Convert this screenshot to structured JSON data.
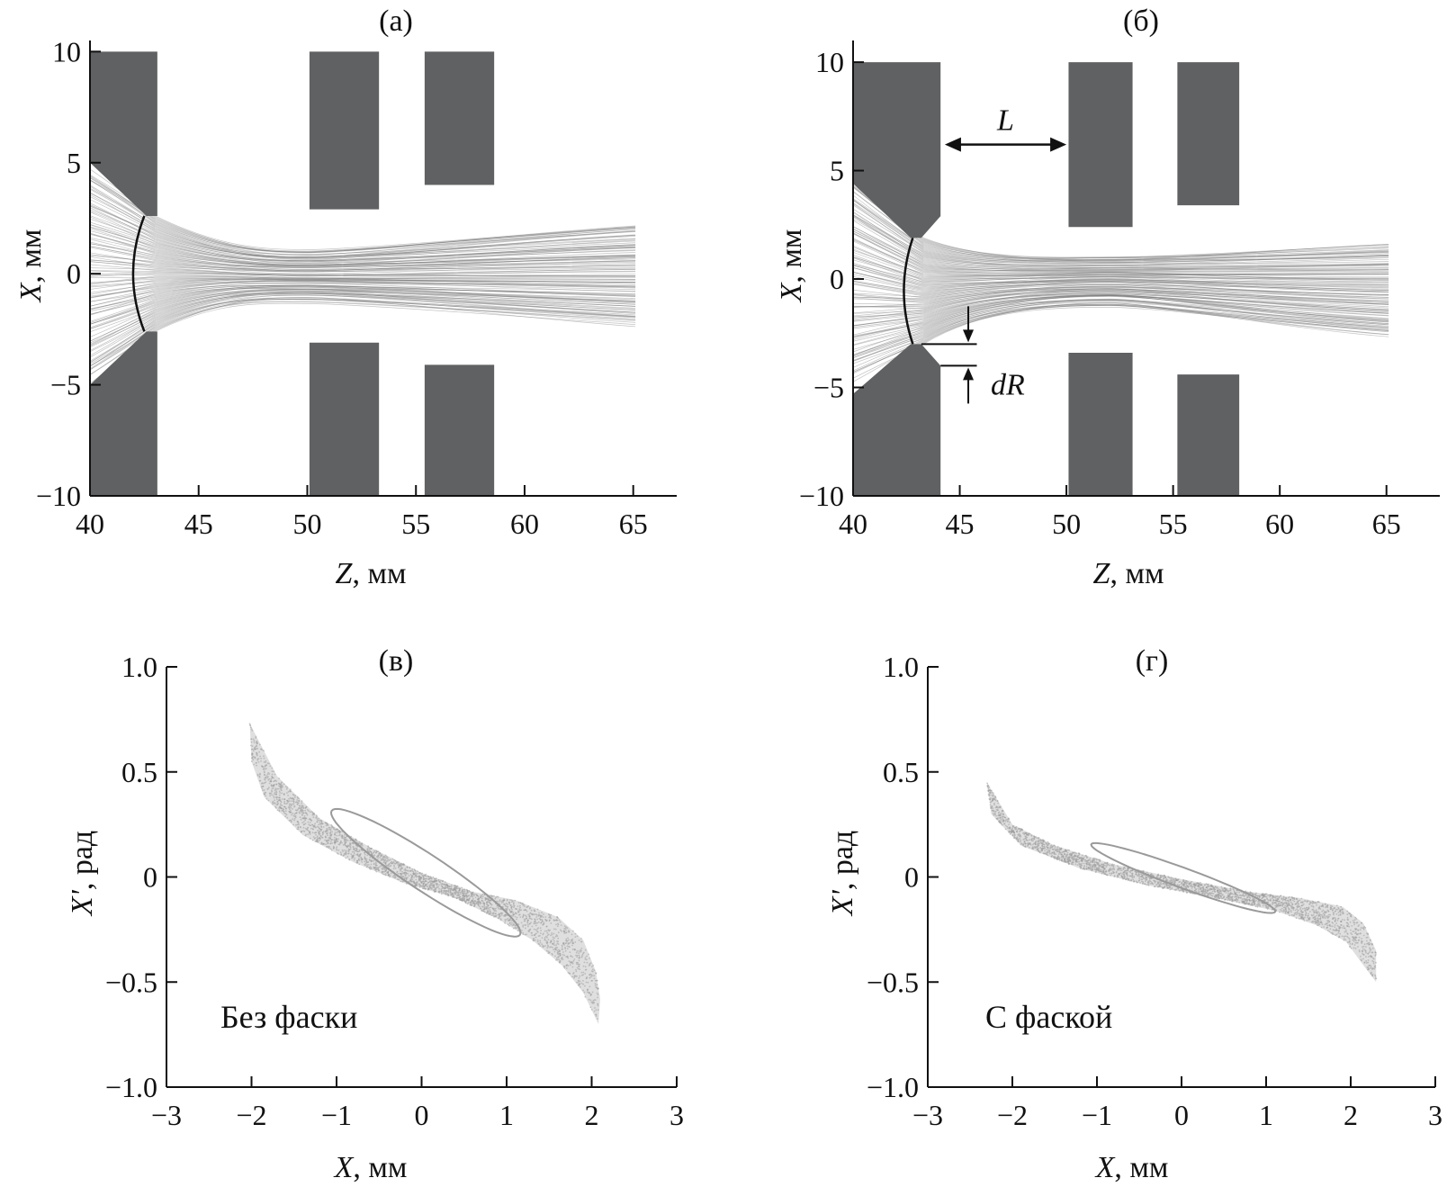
{
  "colors": {
    "electrode": "#606162",
    "trajectory": "#7a7a7a",
    "phase_cloud": "#b8b8b8",
    "ellipse": "#9a9a9a",
    "axis": "#111111",
    "background": "#ffffff"
  },
  "chart_data": [
    {
      "id": "a",
      "type": "trajectory",
      "panel_label": "(а)",
      "xlabel_var": "Z",
      "xlabel_unit": ", мм",
      "ylabel_var": "X",
      "ylabel_unit": ", мм",
      "xlim": [
        40,
        67
      ],
      "ylim": [
        -10,
        10.5
      ],
      "xticks": [
        40,
        45,
        50,
        55,
        60,
        65
      ],
      "yticks": [
        -10,
        -5,
        0,
        5,
        10
      ],
      "xtick_labels": [
        "40",
        "45",
        "50",
        "55",
        "60",
        "65"
      ],
      "ytick_labels": [
        "−10",
        "−5",
        "0",
        "5",
        "10"
      ],
      "electrodes": [
        {
          "name": "emitter-top",
          "polygon": [
            [
              40,
              10
            ],
            [
              43.1,
              10
            ],
            [
              43.1,
              2.6
            ],
            [
              42.6,
              2.6
            ],
            [
              40,
              5
            ]
          ]
        },
        {
          "name": "emitter-bottom",
          "polygon": [
            [
              40,
              -10
            ],
            [
              43.1,
              -10
            ],
            [
              43.1,
              -2.6
            ],
            [
              42.6,
              -2.6
            ],
            [
              40,
              -5
            ]
          ]
        },
        {
          "name": "electrode-1-top",
          "polygon": [
            [
              50.1,
              10
            ],
            [
              53.3,
              10
            ],
            [
              53.3,
              2.9
            ],
            [
              50.1,
              2.9
            ]
          ]
        },
        {
          "name": "electrode-1-bottom",
          "polygon": [
            [
              50.1,
              -10
            ],
            [
              53.3,
              -10
            ],
            [
              53.3,
              -3.1
            ],
            [
              50.1,
              -3.1
            ]
          ]
        },
        {
          "name": "electrode-2-top",
          "polygon": [
            [
              55.4,
              10
            ],
            [
              58.6,
              10
            ],
            [
              58.6,
              4
            ],
            [
              55.4,
              4
            ]
          ]
        },
        {
          "name": "electrode-2-bottom",
          "polygon": [
            [
              55.4,
              -10
            ],
            [
              58.6,
              -10
            ],
            [
              58.6,
              -4.1
            ],
            [
              55.4,
              -4.1
            ]
          ]
        }
      ],
      "meniscus": {
        "z_edge": 42.5,
        "z_apex": 41.8,
        "x_half": 2.6
      },
      "beam": {
        "z_start": 40,
        "z_end": 65.1,
        "start_spread": 4.7,
        "waist_z": 50,
        "end_top": 2.2,
        "end_bottom": -2.3
      },
      "annotations": []
    },
    {
      "id": "b",
      "type": "trajectory",
      "panel_label": "(б)",
      "xlabel_var": "Z",
      "xlabel_unit": ", мм",
      "ylabel_var": "X",
      "ylabel_unit": ", мм",
      "xlim": [
        40,
        67.5
      ],
      "ylim": [
        -10,
        11
      ],
      "xticks": [
        40,
        45,
        50,
        55,
        60,
        65
      ],
      "yticks": [
        -10,
        -5,
        0,
        5,
        10
      ],
      "xtick_labels": [
        "40",
        "45",
        "50",
        "55",
        "60",
        "65"
      ],
      "ytick_labels": [
        "−10",
        "−5",
        "0",
        "5",
        "10"
      ],
      "electrodes": [
        {
          "name": "emitter-top",
          "polygon": [
            [
              40,
              10
            ],
            [
              44.1,
              10
            ],
            [
              44.1,
              2.9
            ],
            [
              43.2,
              1.9
            ],
            [
              42.7,
              1.9
            ],
            [
              40,
              4.4
            ]
          ]
        },
        {
          "name": "emitter-bottom",
          "polygon": [
            [
              40,
              -10
            ],
            [
              44.1,
              -10
            ],
            [
              44.1,
              -4
            ],
            [
              43.2,
              -3
            ],
            [
              42.7,
              -3
            ],
            [
              40,
              -5.3
            ]
          ]
        },
        {
          "name": "electrode-1-top",
          "polygon": [
            [
              50.1,
              10
            ],
            [
              53.1,
              10
            ],
            [
              53.1,
              2.4
            ],
            [
              50.1,
              2.4
            ]
          ]
        },
        {
          "name": "electrode-1-bottom",
          "polygon": [
            [
              50.1,
              -10
            ],
            [
              53.1,
              -10
            ],
            [
              53.1,
              -3.4
            ],
            [
              50.1,
              -3.4
            ]
          ]
        },
        {
          "name": "electrode-2-top",
          "polygon": [
            [
              55.2,
              10
            ],
            [
              58.1,
              10
            ],
            [
              58.1,
              3.4
            ],
            [
              55.2,
              3.4
            ]
          ]
        },
        {
          "name": "electrode-2-bottom",
          "polygon": [
            [
              55.2,
              -10
            ],
            [
              58.1,
              -10
            ],
            [
              58.1,
              -4.4
            ],
            [
              55.2,
              -4.4
            ]
          ]
        }
      ],
      "meniscus": {
        "z_edge": 42.8,
        "z_apex": 42.3,
        "x_half": 1.9,
        "x_low": -3
      },
      "beam": {
        "z_start": 40,
        "z_end": 65.1,
        "start_spread": 4.6,
        "waist_z": 52,
        "end_top": 1.6,
        "end_bottom": -2.6
      },
      "annotations": [
        {
          "text": "L",
          "italic": true
        },
        {
          "text": "dR",
          "italic": true
        }
      ]
    },
    {
      "id": "c",
      "type": "scatter",
      "panel_label": "(в)",
      "note": "Без фаски",
      "xlabel_var": "X",
      "xlabel_unit": ", мм",
      "ylabel_var": "X'",
      "ylabel_unit": ", рад",
      "xlim": [
        -3,
        3
      ],
      "ylim": [
        -1.0,
        1.0
      ],
      "xticks": [
        -3,
        -2,
        -1,
        0,
        1,
        2,
        3
      ],
      "yticks": [
        -1.0,
        -0.5,
        0,
        0.5,
        1.0
      ],
      "xtick_labels": [
        "−3",
        "−2",
        "−1",
        "0",
        "1",
        "2",
        "3"
      ],
      "ytick_labels": [
        "−1.0",
        "−0.5",
        "0",
        "0.5",
        "1.0"
      ],
      "cloud_outline_upper": [
        [
          -2.02,
          0.73
        ],
        [
          -1.7,
          0.48
        ],
        [
          -1.2,
          0.28
        ],
        [
          -0.6,
          0.14
        ],
        [
          0,
          0.02
        ],
        [
          0.6,
          -0.07
        ],
        [
          1.1,
          -0.11
        ],
        [
          1.6,
          -0.19
        ],
        [
          1.9,
          -0.3
        ],
        [
          2.05,
          -0.45
        ],
        [
          2.1,
          -0.58
        ],
        [
          2.08,
          -0.7
        ]
      ],
      "cloud_outline_lower": [
        [
          -2.02,
          0.73
        ],
        [
          -2.0,
          0.55
        ],
        [
          -1.85,
          0.38
        ],
        [
          -1.4,
          0.2
        ],
        [
          -0.8,
          0.07
        ],
        [
          -0.2,
          -0.03
        ],
        [
          0.4,
          -0.1
        ],
        [
          0.9,
          -0.2
        ],
        [
          1.3,
          -0.3
        ],
        [
          1.65,
          -0.42
        ],
        [
          1.9,
          -0.55
        ],
        [
          2.08,
          -0.7
        ]
      ],
      "ellipse": {
        "cx": 0.05,
        "cy": 0.02,
        "rx": 1.15,
        "ry": 0.1,
        "angle_deg": -14.5
      }
    },
    {
      "id": "d",
      "type": "scatter",
      "panel_label": "(г)",
      "note": "С фаской",
      "xlabel_var": "X",
      "xlabel_unit": ", мм",
      "ylabel_var": "X'",
      "ylabel_unit": ", рад",
      "xlim": [
        -3,
        3
      ],
      "ylim": [
        -1.0,
        1.0
      ],
      "xticks": [
        -3,
        -2,
        -1,
        0,
        1,
        2,
        3
      ],
      "yticks": [
        -1.0,
        -0.5,
        0,
        0.5,
        1.0
      ],
      "xtick_labels": [
        "−3",
        "−2",
        "−1",
        "0",
        "1",
        "2",
        "3"
      ],
      "ytick_labels": [
        "−1.0",
        "−0.5",
        "0",
        "0.5",
        "1.0"
      ],
      "cloud_outline_upper": [
        [
          -2.3,
          0.45
        ],
        [
          -2.0,
          0.25
        ],
        [
          -1.5,
          0.15
        ],
        [
          -0.8,
          0.06
        ],
        [
          0,
          -0.01
        ],
        [
          0.8,
          -0.07
        ],
        [
          1.4,
          -0.1
        ],
        [
          1.9,
          -0.14
        ],
        [
          2.15,
          -0.22
        ],
        [
          2.3,
          -0.35
        ],
        [
          2.3,
          -0.5
        ]
      ],
      "cloud_outline_lower": [
        [
          -2.3,
          0.45
        ],
        [
          -2.25,
          0.3
        ],
        [
          -1.9,
          0.15
        ],
        [
          -1.2,
          0.04
        ],
        [
          -0.4,
          -0.04
        ],
        [
          0.4,
          -0.1
        ],
        [
          1.1,
          -0.16
        ],
        [
          1.6,
          -0.23
        ],
        [
          1.95,
          -0.31
        ],
        [
          2.15,
          -0.42
        ],
        [
          2.3,
          -0.5
        ]
      ],
      "ellipse": {
        "cx": 0.02,
        "cy": -0.005,
        "rx": 1.1,
        "ry": 0.05,
        "angle_deg": -8.3
      }
    }
  ]
}
